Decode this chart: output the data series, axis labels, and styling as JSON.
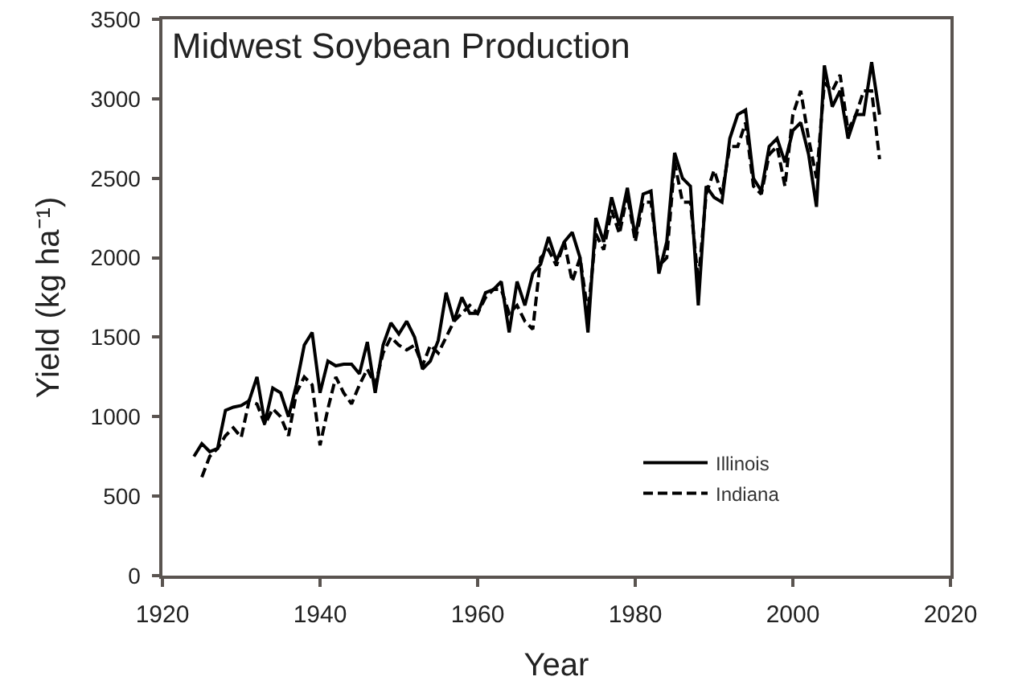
{
  "chart_data": {
    "type": "line",
    "title": "Midwest Soybean Production",
    "xlabel": "Year",
    "ylabel": "Yield (kg ha⁻¹)",
    "x": [
      1924,
      1925,
      1926,
      1927,
      1928,
      1929,
      1930,
      1931,
      1932,
      1933,
      1934,
      1935,
      1936,
      1937,
      1938,
      1939,
      1940,
      1941,
      1942,
      1943,
      1944,
      1945,
      1946,
      1947,
      1948,
      1949,
      1950,
      1951,
      1952,
      1953,
      1954,
      1955,
      1956,
      1957,
      1958,
      1959,
      1960,
      1961,
      1962,
      1963,
      1964,
      1965,
      1966,
      1967,
      1968,
      1969,
      1970,
      1971,
      1972,
      1973,
      1974,
      1975,
      1976,
      1977,
      1978,
      1979,
      1980,
      1981,
      1982,
      1983,
      1984,
      1985,
      1986,
      1987,
      1988,
      1989,
      1990,
      1991,
      1992,
      1993,
      1994,
      1995,
      1996,
      1997,
      1998,
      1999,
      2000,
      2001,
      2002,
      2003,
      2004,
      2005,
      2006,
      2007,
      2008,
      2009,
      2010,
      2011
    ],
    "series": [
      {
        "name": "Illinois",
        "color": "#000000",
        "line_style": "solid",
        "values": [
          750,
          830,
          780,
          800,
          1040,
          1060,
          1070,
          1100,
          1250,
          960,
          1180,
          1150,
          1000,
          1200,
          1450,
          1530,
          1150,
          1350,
          1320,
          1330,
          1330,
          1270,
          1470,
          1150,
          1450,
          1590,
          1520,
          1600,
          1500,
          1300,
          1350,
          1480,
          1780,
          1600,
          1750,
          1650,
          1650,
          1780,
          1800,
          1850,
          1530,
          1850,
          1700,
          1900,
          1960,
          2130,
          1980,
          2100,
          2160,
          2000,
          1530,
          2250,
          2100,
          2380,
          2200,
          2440,
          2130,
          2400,
          2420,
          1900,
          2100,
          2660,
          2500,
          2450,
          1700,
          2450,
          2380,
          2350,
          2750,
          2900,
          2930,
          2500,
          2420,
          2700,
          2750,
          2600,
          2800,
          2850,
          2650,
          2320,
          3210,
          2950,
          3050,
          2750,
          2900,
          2900,
          3230,
          2900
        ]
      },
      {
        "name": "Indiana",
        "color": "#000000",
        "line_style": "dashed",
        "values": [
          null,
          620,
          750,
          800,
          880,
          930,
          870,
          1100,
          1080,
          950,
          1050,
          1000,
          880,
          1150,
          1250,
          1200,
          820,
          1050,
          1250,
          1150,
          1080,
          1200,
          1300,
          1200,
          1400,
          1500,
          1450,
          1420,
          1450,
          1320,
          1450,
          1400,
          1500,
          1600,
          1650,
          1700,
          1650,
          1750,
          1800,
          1800,
          1650,
          1700,
          1600,
          1550,
          2000,
          2050,
          1950,
          2100,
          1850,
          2000,
          1650,
          2150,
          2050,
          2300,
          2150,
          2400,
          2100,
          2350,
          2350,
          1950,
          2000,
          2600,
          2350,
          2350,
          1850,
          2400,
          2550,
          2400,
          2700,
          2700,
          2850,
          2450,
          2400,
          2650,
          2700,
          2450,
          2900,
          3050,
          2750,
          2500,
          3100,
          3050,
          3150,
          2800,
          2900,
          3050,
          3050,
          2620
        ]
      }
    ],
    "xlim": [
      1920,
      2020
    ],
    "xticks": [
      1920,
      1940,
      1960,
      1980,
      2000,
      2020
    ],
    "ylim": [
      0,
      3500
    ],
    "yticks": [
      0,
      500,
      1000,
      1500,
      2000,
      2500,
      3000,
      3500
    ],
    "legend": "bottom right"
  }
}
